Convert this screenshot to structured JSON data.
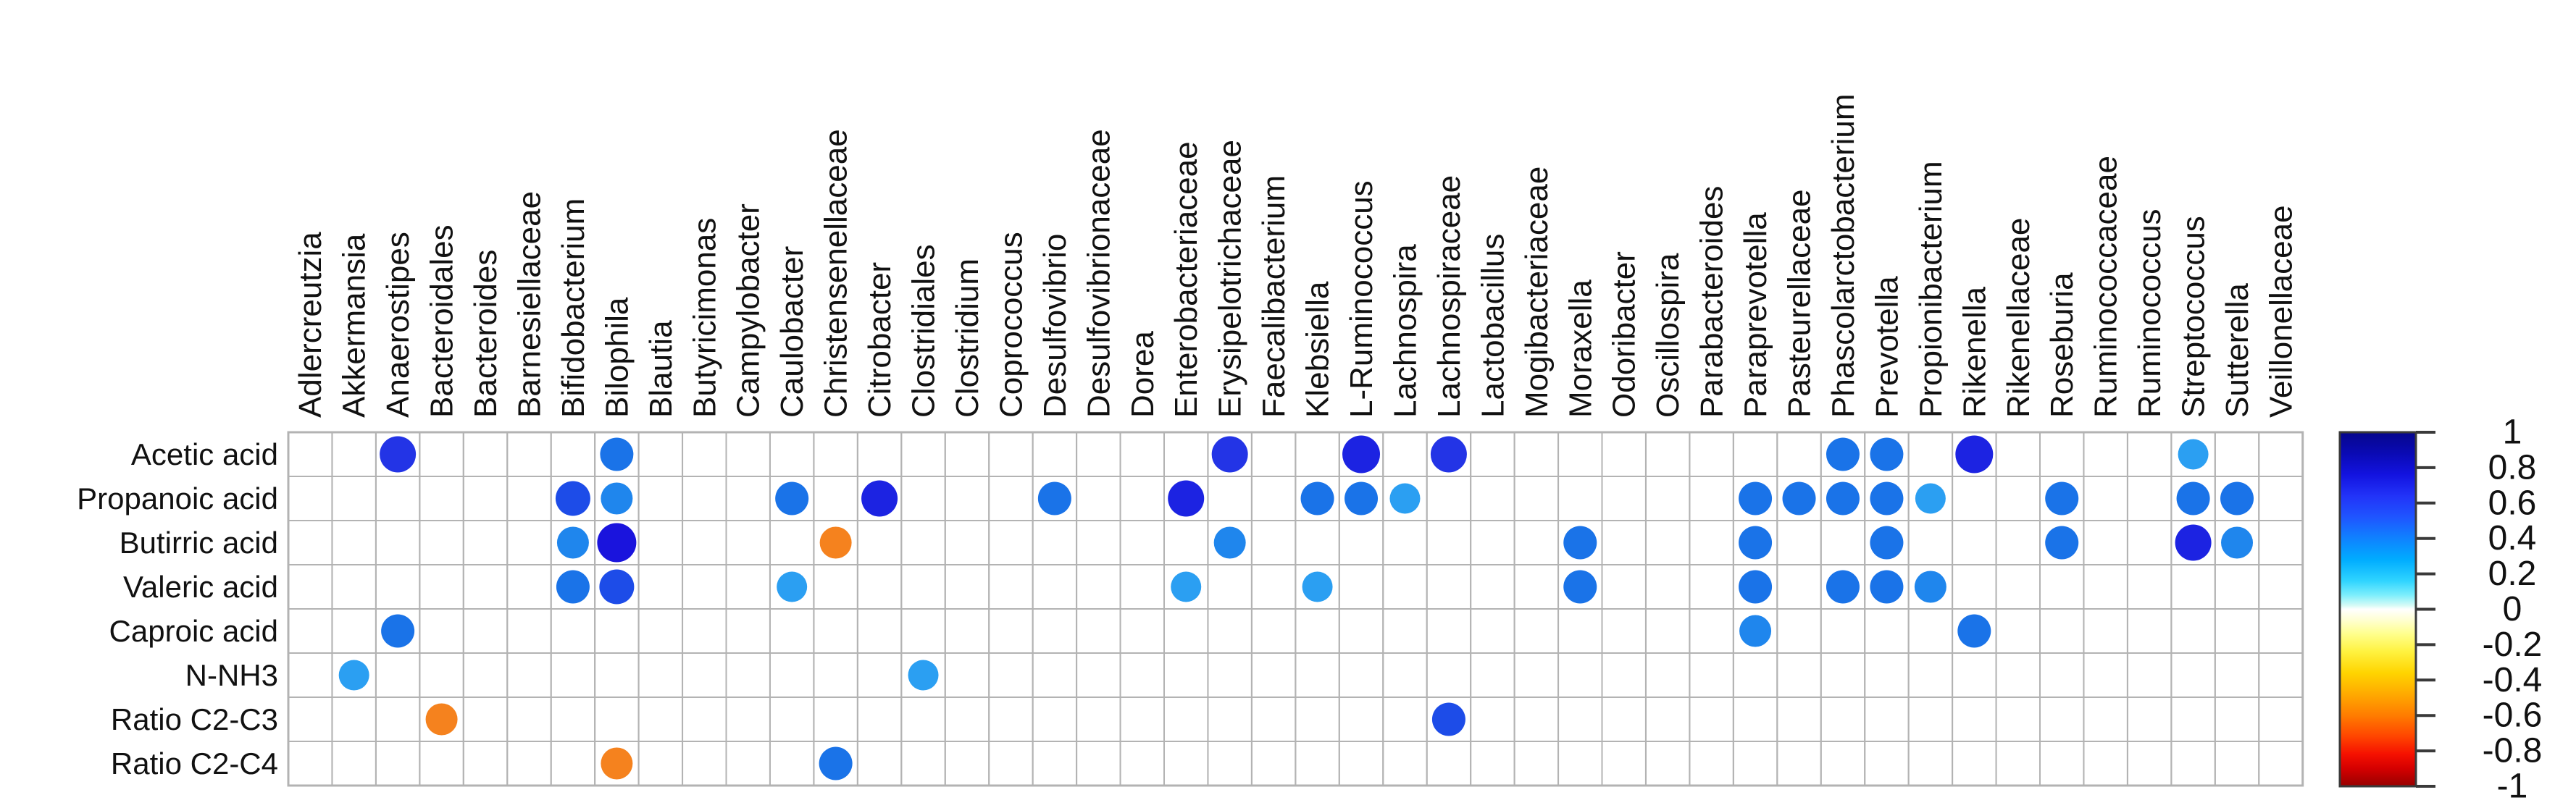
{
  "chart_data": {
    "type": "heatmap",
    "subtype": "correlation-dot-matrix",
    "title": "",
    "legend_position": "right",
    "grid": "on",
    "rows": [
      "Acetic acid",
      "Propanoic acid",
      "Butirric acid",
      "Valeric acid",
      "Caproic acid",
      "N-NH3",
      "Ratio C2-C3",
      "Ratio C2-C4"
    ],
    "columns": [
      "Adlercreutzia",
      "Akkermansia",
      "Anaerostipes",
      "Bacteroidales",
      "Bacteroides",
      "Barnesiellaceae",
      "Bifidobacterium",
      "Bilophila",
      "Blautia",
      "Butyricimonas",
      "Campylobacter",
      "Caulobacter",
      "Christensenellaceae",
      "Citrobacter",
      "Clostridiales",
      "Clostridium",
      "Coprococcus",
      "Desulfovibrio",
      "Desulfovibrionaceae",
      "Dorea",
      "Enterobacteriaceae",
      "Erysipelotrichaceae",
      "Faecalibacterium",
      "Klebsiella",
      "L-Ruminococcus",
      "Lachnospira",
      "Lachnospiraceae",
      "Lactobacillus",
      "Mogibacteriaceae",
      "Moraxella",
      "Odoribacter",
      "Oscillospira",
      "Parabacteroides",
      "Paraprevotella",
      "Pasteurellaceae",
      "Phascolarctobacterium",
      "Prevotella",
      "Propionibacterium",
      "Rikenella",
      "Rikenellaceae",
      "Roseburia",
      "Ruminococcaceae",
      "Ruminococcus",
      "Streptococcus",
      "Sutterella",
      "Veillonellaceae"
    ],
    "palette": {
      "navy": "#1a14dd",
      "deep": "#1c23e2",
      "royal": "#2334e6",
      "strong": "#1d4ce8",
      "blue": "#1a73e8",
      "dodger": "#1f86ed",
      "light": "#2b9ff2",
      "orange": "#f5821e"
    },
    "colorbar": {
      "min": -1,
      "max": 1,
      "tick_labels": [
        "1",
        "0.8",
        "0.6",
        "0.4",
        "0.2",
        "0",
        "-0.2",
        "-0.4",
        "-0.6",
        "-0.8",
        "-1"
      ],
      "gradient": [
        [
          "0",
          "#06068c"
        ],
        [
          "0.06",
          "#0a0ab4"
        ],
        [
          "0.12",
          "#1313e0"
        ],
        [
          "0.18",
          "#2233f8"
        ],
        [
          "0.24",
          "#1f55ff"
        ],
        [
          "0.30",
          "#0f82ff"
        ],
        [
          "0.36",
          "#00acff"
        ],
        [
          "0.42",
          "#2fd4ff"
        ],
        [
          "0.46",
          "#7deefc"
        ],
        [
          "0.49",
          "#d8fbf6"
        ],
        [
          "0.50",
          "#ffffff"
        ],
        [
          "0.53",
          "#ffffd2"
        ],
        [
          "0.57",
          "#ffff8c"
        ],
        [
          "0.62",
          "#fff23f"
        ],
        [
          "0.68",
          "#ffd400"
        ],
        [
          "0.74",
          "#ffaa00"
        ],
        [
          "0.80",
          "#ff7c00"
        ],
        [
          "0.86",
          "#ff4400"
        ],
        [
          "0.91",
          "#f51000"
        ],
        [
          "0.95",
          "#d40000"
        ],
        [
          "1",
          "#970000"
        ]
      ]
    },
    "dots": [
      {
        "row": "Acetic acid",
        "col": "Anaerostipes",
        "value": 0.8,
        "k": "royal",
        "r": 25
      },
      {
        "row": "Acetic acid",
        "col": "Bilophila",
        "value": 0.6,
        "k": "blue",
        "r": 23
      },
      {
        "row": "Acetic acid",
        "col": "Erysipelotrichaceae",
        "value": 0.8,
        "k": "royal",
        "r": 25
      },
      {
        "row": "Acetic acid",
        "col": "L-Ruminococcus",
        "value": 0.85,
        "k": "deep",
        "r": 26
      },
      {
        "row": "Acetic acid",
        "col": "Lachnospiraceae",
        "value": 0.8,
        "k": "royal",
        "r": 25
      },
      {
        "row": "Acetic acid",
        "col": "Phascolarctobacterium",
        "value": 0.65,
        "k": "blue",
        "r": 23
      },
      {
        "row": "Acetic acid",
        "col": "Prevotella",
        "value": 0.65,
        "k": "blue",
        "r": 23
      },
      {
        "row": "Acetic acid",
        "col": "Rikenella",
        "value": 0.85,
        "k": "deep",
        "r": 26
      },
      {
        "row": "Acetic acid",
        "col": "Streptococcus",
        "value": 0.5,
        "k": "light",
        "r": 21
      },
      {
        "row": "Propanoic acid",
        "col": "Bifidobacterium",
        "value": 0.7,
        "k": "strong",
        "r": 24
      },
      {
        "row": "Propanoic acid",
        "col": "Bilophila",
        "value": 0.55,
        "k": "dodger",
        "r": 22
      },
      {
        "row": "Propanoic acid",
        "col": "Caulobacter",
        "value": 0.6,
        "k": "blue",
        "r": 23
      },
      {
        "row": "Propanoic acid",
        "col": "Citrobacter",
        "value": 0.8,
        "k": "deep",
        "r": 25
      },
      {
        "row": "Propanoic acid",
        "col": "Desulfovibrio",
        "value": 0.6,
        "k": "blue",
        "r": 23
      },
      {
        "row": "Propanoic acid",
        "col": "Enterobacteriaceae",
        "value": 0.8,
        "k": "deep",
        "r": 25
      },
      {
        "row": "Propanoic acid",
        "col": "Klebsiella",
        "value": 0.6,
        "k": "blue",
        "r": 23
      },
      {
        "row": "Propanoic acid",
        "col": "L-Ruminococcus",
        "value": 0.6,
        "k": "blue",
        "r": 23
      },
      {
        "row": "Propanoic acid",
        "col": "Lachnospira",
        "value": 0.5,
        "k": "light",
        "r": 21
      },
      {
        "row": "Propanoic acid",
        "col": "Paraprevotella",
        "value": 0.6,
        "k": "blue",
        "r": 23
      },
      {
        "row": "Propanoic acid",
        "col": "Pasteurellaceae",
        "value": 0.6,
        "k": "blue",
        "r": 23
      },
      {
        "row": "Propanoic acid",
        "col": "Phascolarctobacterium",
        "value": 0.65,
        "k": "blue",
        "r": 23
      },
      {
        "row": "Propanoic acid",
        "col": "Prevotella",
        "value": 0.65,
        "k": "blue",
        "r": 23
      },
      {
        "row": "Propanoic acid",
        "col": "Propionibacterium",
        "value": 0.5,
        "k": "light",
        "r": 21
      },
      {
        "row": "Propanoic acid",
        "col": "Roseburia",
        "value": 0.6,
        "k": "blue",
        "r": 23
      },
      {
        "row": "Propanoic acid",
        "col": "Streptococcus",
        "value": 0.6,
        "k": "blue",
        "r": 23
      },
      {
        "row": "Propanoic acid",
        "col": "Sutterella",
        "value": 0.6,
        "k": "blue",
        "r": 23
      },
      {
        "row": "Butirric acid",
        "col": "Bifidobacterium",
        "value": 0.5,
        "k": "dodger",
        "r": 22
      },
      {
        "row": "Butirric acid",
        "col": "Bilophila",
        "value": 0.95,
        "k": "navy",
        "r": 27
      },
      {
        "row": "Butirric acid",
        "col": "Christensenellaceae",
        "value": -0.55,
        "k": "orange",
        "r": 22
      },
      {
        "row": "Butirric acid",
        "col": "Erysipelotrichaceae",
        "value": 0.5,
        "k": "dodger",
        "r": 22
      },
      {
        "row": "Butirric acid",
        "col": "Moraxella",
        "value": 0.6,
        "k": "blue",
        "r": 23
      },
      {
        "row": "Butirric acid",
        "col": "Paraprevotella",
        "value": 0.6,
        "k": "blue",
        "r": 23
      },
      {
        "row": "Butirric acid",
        "col": "Prevotella",
        "value": 0.6,
        "k": "blue",
        "r": 23
      },
      {
        "row": "Butirric acid",
        "col": "Roseburia",
        "value": 0.6,
        "k": "blue",
        "r": 23
      },
      {
        "row": "Butirric acid",
        "col": "Streptococcus",
        "value": 0.8,
        "k": "deep",
        "r": 25
      },
      {
        "row": "Butirric acid",
        "col": "Sutterella",
        "value": 0.55,
        "k": "dodger",
        "r": 22
      },
      {
        "row": "Valeric acid",
        "col": "Bifidobacterium",
        "value": 0.65,
        "k": "blue",
        "r": 23
      },
      {
        "row": "Valeric acid",
        "col": "Bilophila",
        "value": 0.7,
        "k": "strong",
        "r": 24
      },
      {
        "row": "Valeric acid",
        "col": "Caulobacter",
        "value": 0.5,
        "k": "light",
        "r": 21
      },
      {
        "row": "Valeric acid",
        "col": "Enterobacteriaceae",
        "value": 0.5,
        "k": "light",
        "r": 21
      },
      {
        "row": "Valeric acid",
        "col": "Klebsiella",
        "value": 0.5,
        "k": "light",
        "r": 21
      },
      {
        "row": "Valeric acid",
        "col": "Moraxella",
        "value": 0.6,
        "k": "blue",
        "r": 23
      },
      {
        "row": "Valeric acid",
        "col": "Paraprevotella",
        "value": 0.6,
        "k": "blue",
        "r": 23
      },
      {
        "row": "Valeric acid",
        "col": "Phascolarctobacterium",
        "value": 0.6,
        "k": "blue",
        "r": 23
      },
      {
        "row": "Valeric acid",
        "col": "Prevotella",
        "value": 0.65,
        "k": "blue",
        "r": 23
      },
      {
        "row": "Valeric acid",
        "col": "Propionibacterium",
        "value": 0.5,
        "k": "dodger",
        "r": 22
      },
      {
        "row": "Caproic acid",
        "col": "Anaerostipes",
        "value": 0.65,
        "k": "blue",
        "r": 23
      },
      {
        "row": "Caproic acid",
        "col": "Paraprevotella",
        "value": 0.5,
        "k": "dodger",
        "r": 22
      },
      {
        "row": "Caproic acid",
        "col": "Rikenella",
        "value": 0.6,
        "k": "blue",
        "r": 23
      },
      {
        "row": "N-NH3",
        "col": "Akkermansia",
        "value": 0.5,
        "k": "light",
        "r": 21
      },
      {
        "row": "N-NH3",
        "col": "Clostridiales",
        "value": 0.5,
        "k": "light",
        "r": 21
      },
      {
        "row": "Ratio C2-C3",
        "col": "Bacteroidales",
        "value": -0.55,
        "k": "orange",
        "r": 22
      },
      {
        "row": "Ratio C2-C3",
        "col": "Lachnospiraceae",
        "value": 0.65,
        "k": "strong",
        "r": 23
      },
      {
        "row": "Ratio C2-C4",
        "col": "Bilophila",
        "value": -0.55,
        "k": "orange",
        "r": 22
      },
      {
        "row": "Ratio C2-C4",
        "col": "Christensenellaceae",
        "value": 0.6,
        "k": "blue",
        "r": 23
      }
    ]
  }
}
